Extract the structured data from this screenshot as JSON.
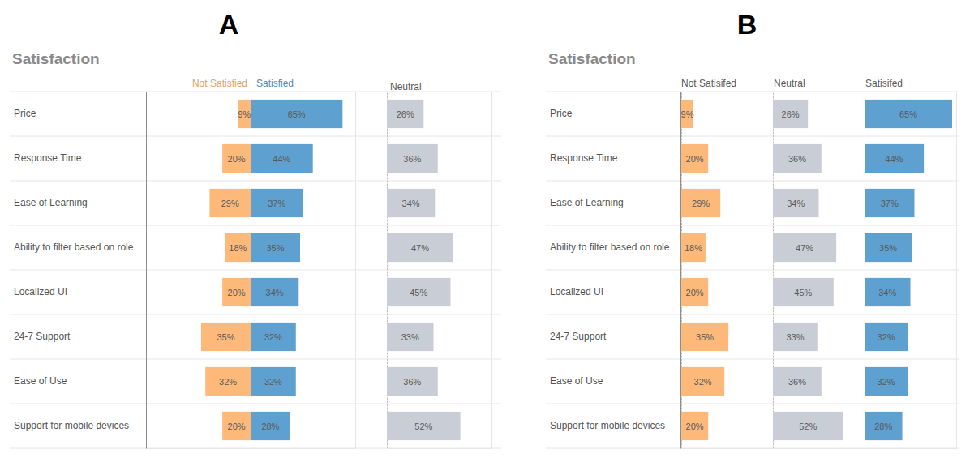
{
  "chart_data": [
    {
      "type": "bar",
      "title": "Satisfaction",
      "annotations": [
        "A"
      ],
      "orientation": "horizontal",
      "data_labels": true,
      "tick_labels": "y",
      "grid": true,
      "xlim": [
        0,
        74
      ],
      "xticks": [
        0
      ],
      "categories": [
        "Price",
        "Response Time",
        "Ease of Learning",
        "Ability to filter based on role",
        "Localized UI",
        "24-7 Support",
        "Ease of Use",
        "Support for mobile devices"
      ],
      "series": [
        {
          "name": "Not Satisfied",
          "color": "#fdb97a",
          "values": [
            9,
            20,
            29,
            18,
            20,
            35,
            32,
            20
          ],
          "value_labels": [
            "9%",
            "20%",
            "29%",
            "18%",
            "20%",
            "35%",
            "32%",
            "20%"
          ]
        },
        {
          "name": "Satisfied",
          "color": "#5ea0cf",
          "values": [
            65,
            44,
            37,
            35,
            34,
            32,
            32,
            28
          ],
          "value_labels": [
            "65%",
            "44%",
            "37%",
            "35%",
            "34%",
            "32%",
            "32%",
            "28%"
          ]
        },
        {
          "name": "Neutral",
          "color": "#c9ced6",
          "values": [
            26,
            36,
            34,
            47,
            45,
            33,
            36,
            52
          ],
          "value_labels": [
            "26%",
            "36%",
            "34%",
            "47%",
            "45%",
            "33%",
            "36%",
            "52%"
          ]
        }
      ]
    },
    {
      "type": "bar",
      "title": "Satisfaction",
      "annotations": [
        "B"
      ],
      "orientation": "horizontal",
      "data_labels": true,
      "tick_labels": "y",
      "grid": true,
      "xlim": [
        0,
        68
      ],
      "xticks": [
        0
      ],
      "categories": [
        "Price",
        "Response Time",
        "Ease of Learning",
        "Ability to filter based on role",
        "Localized UI",
        "24-7 Support",
        "Ease of Use",
        "Support for mobile devices"
      ],
      "series": [
        {
          "name": "Not Satisifed",
          "color": "#fdb97a",
          "values": [
            9,
            20,
            29,
            18,
            20,
            35,
            32,
            20
          ],
          "value_labels": [
            "9%",
            "20%",
            "29%",
            "18%",
            "20%",
            "35%",
            "32%",
            "20%"
          ]
        },
        {
          "name": "Neutral",
          "color": "#c9ced6",
          "values": [
            26,
            36,
            34,
            47,
            45,
            33,
            36,
            52
          ],
          "value_labels": [
            "26%",
            "36%",
            "34%",
            "47%",
            "45%",
            "33%",
            "36%",
            "52%"
          ]
        },
        {
          "name": "Satisifed",
          "color": "#5ea0cf",
          "values": [
            65,
            44,
            37,
            35,
            34,
            32,
            32,
            28
          ],
          "value_labels": [
            "65%",
            "44%",
            "37%",
            "35%",
            "34%",
            "32%",
            "32%",
            "28%"
          ]
        }
      ]
    }
  ]
}
